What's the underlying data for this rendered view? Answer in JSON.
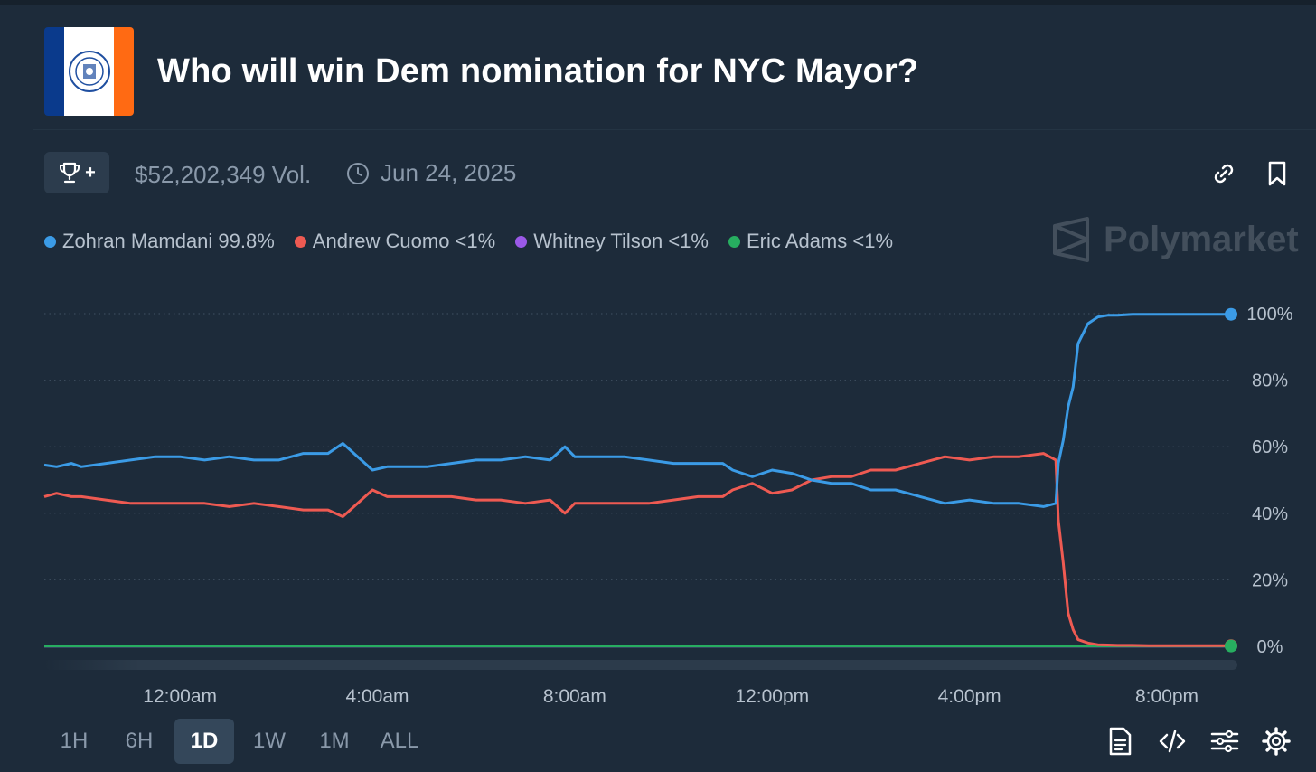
{
  "header": {
    "title": "Who will win Dem nomination for NYC Mayor?"
  },
  "meta": {
    "volume": "$52,202,349 Vol.",
    "date": "Jun 24, 2025",
    "trophy_plus": "+"
  },
  "brand": {
    "name": "Polymarket"
  },
  "legend": [
    {
      "label": "Zohran Mamdani 99.8%",
      "color": "#3b9be6"
    },
    {
      "label": "Andrew Cuomo <1%",
      "color": "#ee5a52"
    },
    {
      "label": "Whitney Tilson <1%",
      "color": "#9b59e8"
    },
    {
      "label": "Eric Adams <1%",
      "color": "#27ae60"
    }
  ],
  "time_ranges": [
    {
      "label": "1H",
      "active": false
    },
    {
      "label": "6H",
      "active": false
    },
    {
      "label": "1D",
      "active": true
    },
    {
      "label": "1W",
      "active": false
    },
    {
      "label": "1M",
      "active": false
    },
    {
      "label": "ALL",
      "active": false
    }
  ],
  "chart_data": {
    "type": "line",
    "title": "",
    "xlabel": "",
    "ylabel": "",
    "x_unit": "hours",
    "x_range": [
      -2.0,
      22.0
    ],
    "ylim": [
      0,
      100
    ],
    "y_ticks": [
      "0%",
      "20%",
      "40%",
      "60%",
      "80%",
      "100%"
    ],
    "y_tick_values": [
      0,
      20,
      40,
      60,
      80,
      100
    ],
    "x_ticks": [
      "12:00am",
      "4:00am",
      "8:00am",
      "12:00pm",
      "4:00pm",
      "8:00pm"
    ],
    "x_tick_values": [
      0,
      4,
      8,
      12,
      16,
      20
    ],
    "y_axis_position": "right",
    "grid": "horizontal dotted",
    "legend_position": "top-left",
    "series": [
      {
        "name": "Zohran Mamdani",
        "color": "#3b9be6",
        "x": [
          -2.75,
          -2.5,
          -2.2,
          -2.0,
          -1.5,
          -1.0,
          -0.5,
          0.0,
          0.5,
          1.0,
          1.5,
          2.0,
          2.5,
          3.0,
          3.3,
          3.6,
          3.9,
          4.2,
          4.6,
          5.0,
          5.5,
          6.0,
          6.5,
          7.0,
          7.5,
          7.8,
          8.0,
          8.5,
          9.0,
          9.5,
          10.0,
          10.5,
          11.0,
          11.2,
          11.6,
          12.0,
          12.4,
          12.8,
          13.2,
          13.6,
          14.0,
          14.5,
          15.0,
          15.5,
          16.0,
          16.5,
          17.0,
          17.5,
          17.75,
          17.8,
          17.9,
          18.0,
          18.1,
          18.2,
          18.4,
          18.6,
          18.8,
          19.0,
          19.3,
          19.7,
          20.0,
          20.5,
          21.3
        ],
        "values": [
          54.5,
          54,
          55,
          54,
          55,
          56,
          57,
          57,
          56,
          57,
          56,
          56,
          58,
          58,
          61,
          57,
          53,
          54,
          54,
          54,
          55,
          56,
          56,
          57,
          56,
          60,
          57,
          57,
          57,
          56,
          55,
          55,
          55,
          53,
          51,
          53,
          52,
          50,
          49,
          49,
          47,
          47,
          45,
          43,
          44,
          43,
          43,
          42,
          43,
          55,
          62,
          72,
          78,
          91,
          97,
          99,
          99.5,
          99.5,
          99.8,
          99.8,
          99.8,
          99.8,
          99.8
        ]
      },
      {
        "name": "Andrew Cuomo",
        "color": "#ee5a52",
        "x": [
          -2.75,
          -2.5,
          -2.2,
          -2.0,
          -1.5,
          -1.0,
          -0.5,
          0.0,
          0.5,
          1.0,
          1.5,
          2.0,
          2.5,
          3.0,
          3.3,
          3.6,
          3.9,
          4.2,
          4.6,
          5.0,
          5.5,
          6.0,
          6.5,
          7.0,
          7.5,
          7.8,
          8.0,
          8.5,
          9.0,
          9.5,
          10.0,
          10.5,
          11.0,
          11.2,
          11.6,
          12.0,
          12.4,
          12.8,
          13.2,
          13.6,
          14.0,
          14.5,
          15.0,
          15.5,
          16.0,
          16.5,
          17.0,
          17.5,
          17.75,
          17.8,
          17.9,
          18.0,
          18.1,
          18.2,
          18.4,
          18.6,
          18.8,
          19.0,
          19.3,
          19.7,
          20.0,
          20.5,
          21.3
        ],
        "values": [
          45,
          46,
          45,
          45,
          44,
          43,
          43,
          43,
          43,
          42,
          43,
          42,
          41,
          41,
          39,
          43,
          47,
          45,
          45,
          45,
          45,
          44,
          44,
          43,
          44,
          40,
          43,
          43,
          43,
          43,
          44,
          45,
          45,
          47,
          49,
          46,
          47,
          50,
          51,
          51,
          53,
          53,
          55,
          57,
          56,
          57,
          57,
          58,
          56,
          38,
          25,
          10,
          5,
          2,
          1,
          0.5,
          0.4,
          0.3,
          0.3,
          0.2,
          0.2,
          0.2,
          0.2
        ]
      },
      {
        "name": "Whitney Tilson",
        "color": "#9b59e8",
        "x": [
          -2.75,
          21.3
        ],
        "values": [
          0.05,
          0.05
        ]
      },
      {
        "name": "Eric Adams",
        "color": "#27ae60",
        "x": [
          -2.75,
          21.3
        ],
        "values": [
          0.1,
          0.1
        ]
      }
    ]
  }
}
